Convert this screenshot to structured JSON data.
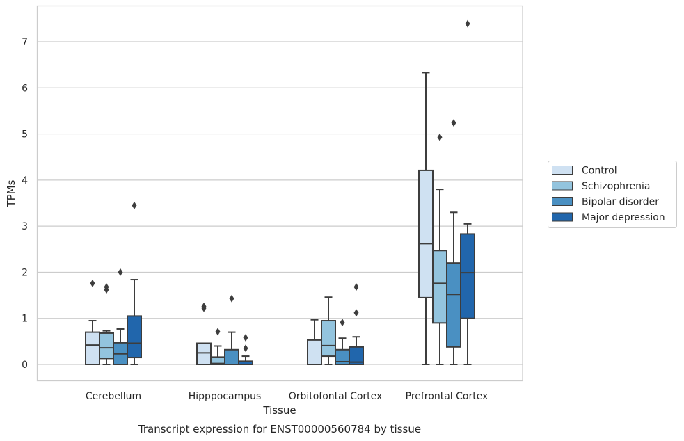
{
  "chart_data": {
    "type": "box",
    "title": "",
    "caption": "Transcript expression for ENST00000560784 by tissue",
    "xlabel": "Tissue",
    "ylabel": "TPMs",
    "ylim": [
      -0.35,
      7.75
    ],
    "yticks": [
      0,
      1,
      2,
      3,
      4,
      5,
      6,
      7
    ],
    "grid": true,
    "legend_position": "right",
    "categories": [
      "Cerebellum",
      "Hipppocampus",
      "Orbitofontal Cortex",
      "Prefrontal Cortex"
    ],
    "series": [
      {
        "name": "Control",
        "color": "#cfe1f2",
        "boxes": [
          {
            "whisker_low": 0,
            "q1": 0,
            "median": 0.42,
            "q3": 0.7,
            "whisker_high": 0.95,
            "outliers": [
              1.76
            ]
          },
          {
            "whisker_low": 0,
            "q1": 0,
            "median": 0.25,
            "q3": 0.46,
            "whisker_high": 0.46,
            "outliers": [
              1.22,
              1.26
            ]
          },
          {
            "whisker_low": 0,
            "q1": 0,
            "median": 0,
            "q3": 0.53,
            "whisker_high": 0.97,
            "outliers": []
          },
          {
            "whisker_low": 0,
            "q1": 1.45,
            "median": 2.62,
            "q3": 4.21,
            "whisker_high": 6.33,
            "outliers": []
          }
        ]
      },
      {
        "name": "Schizophrenia",
        "color": "#93c4de",
        "boxes": [
          {
            "whisker_low": 0,
            "q1": 0.13,
            "median": 0.36,
            "q3": 0.68,
            "whisker_high": 0.73,
            "outliers": [
              1.62,
              1.68
            ]
          },
          {
            "whisker_low": 0,
            "q1": 0,
            "median": 0.02,
            "q3": 0.16,
            "whisker_high": 0.4,
            "outliers": [
              0.71
            ]
          },
          {
            "whisker_low": 0,
            "q1": 0.18,
            "median": 0.41,
            "q3": 0.95,
            "whisker_high": 1.46,
            "outliers": []
          },
          {
            "whisker_low": 0,
            "q1": 0.9,
            "median": 1.76,
            "q3": 2.47,
            "whisker_high": 3.8,
            "outliers": [
              4.93
            ]
          }
        ]
      },
      {
        "name": "Bipolar disorder",
        "color": "#4a90c2",
        "boxes": [
          {
            "whisker_low": 0,
            "q1": 0,
            "median": 0.23,
            "q3": 0.47,
            "whisker_high": 0.77,
            "outliers": [
              2.0
            ]
          },
          {
            "whisker_low": 0,
            "q1": 0,
            "median": 0,
            "q3": 0.32,
            "whisker_high": 0.7,
            "outliers": [
              1.43
            ]
          },
          {
            "whisker_low": 0,
            "q1": 0,
            "median": 0.06,
            "q3": 0.32,
            "whisker_high": 0.57,
            "outliers": [
              0.91
            ]
          },
          {
            "whisker_low": 0,
            "q1": 0.38,
            "median": 1.52,
            "q3": 2.2,
            "whisker_high": 3.3,
            "outliers": [
              5.24
            ]
          }
        ]
      },
      {
        "name": "Major depression",
        "color": "#2166ac",
        "boxes": [
          {
            "whisker_low": 0,
            "q1": 0.15,
            "median": 0.46,
            "q3": 1.05,
            "whisker_high": 1.84,
            "outliers": [
              3.45
            ]
          },
          {
            "whisker_low": 0,
            "q1": 0,
            "median": 0,
            "q3": 0.07,
            "whisker_high": 0.18,
            "outliers": [
              0.35,
              0.58
            ]
          },
          {
            "whisker_low": 0,
            "q1": 0,
            "median": 0.05,
            "q3": 0.38,
            "whisker_high": 0.6,
            "outliers": [
              1.12,
              1.68
            ]
          },
          {
            "whisker_low": 0,
            "q1": 1.0,
            "median": 1.99,
            "q3": 2.83,
            "whisker_high": 3.05,
            "outliers": [
              7.39
            ]
          }
        ]
      }
    ]
  }
}
